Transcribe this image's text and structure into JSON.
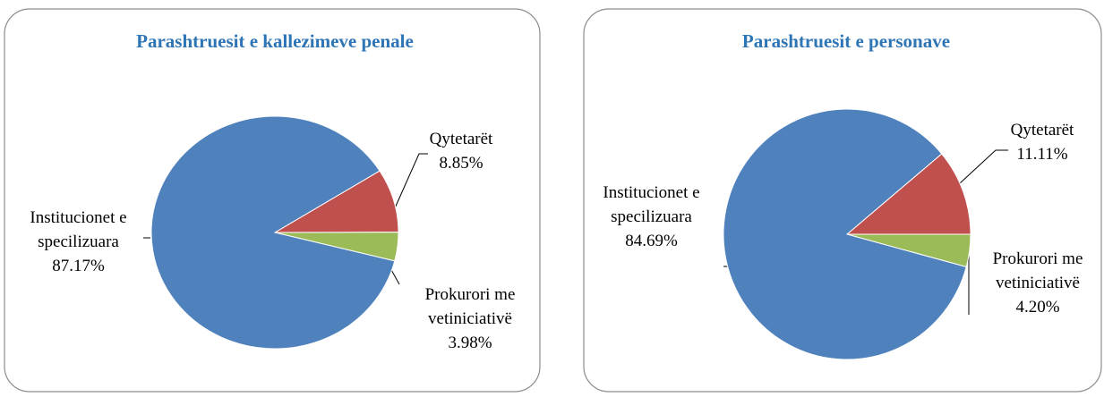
{
  "chart_data": [
    {
      "type": "pie",
      "title": "Parashtruesit e kallezimeve penale",
      "categories": [
        "Qytetarët",
        "Prokurori me vetiniciativë",
        "Institucionet e specilizuara"
      ],
      "values": [
        8.85,
        3.98,
        87.17
      ],
      "value_labels": [
        "8.85%",
        "3.98%",
        "87.17%"
      ],
      "colors": [
        "#c0504d",
        "#9bbb59",
        "#4f81bd"
      ]
    },
    {
      "type": "pie",
      "title": "Parashtruesit e personave",
      "categories": [
        "Qytetarët",
        "Prokurori me vetiniciativë",
        "Institucionet e specilizuara"
      ],
      "values": [
        11.11,
        4.2,
        84.69
      ],
      "value_labels": [
        "11.11%",
        "4.20%",
        "84.69%"
      ],
      "colors": [
        "#c0504d",
        "#9bbb59",
        "#4f81bd"
      ]
    }
  ]
}
